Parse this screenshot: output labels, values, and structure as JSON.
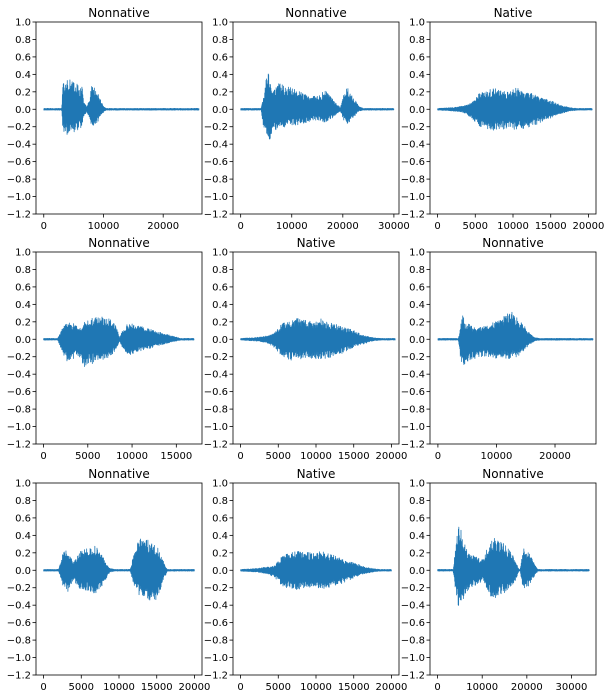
{
  "figure": {
    "waveform_color": "#1f77b4"
  },
  "chart_data": [
    {
      "type": "line",
      "title": "Nonnative",
      "xlim": [
        -1300,
        26500
      ],
      "xticks": [
        0,
        10000,
        20000
      ],
      "xtick_labels": [
        "0",
        "10000",
        "20000"
      ],
      "ylim": [
        -1.2,
        1.0
      ],
      "yticks": [
        -1.2,
        -1.0,
        -0.8,
        -0.6,
        -0.4,
        -0.2,
        0.0,
        0.2,
        0.4,
        0.6,
        0.8,
        1.0
      ],
      "ytick_labels": [
        "−1.2",
        "−1.0",
        "−0.8",
        "−0.6",
        "−0.4",
        "−0.2",
        "0.0",
        "0.2",
        "0.4",
        "0.6",
        "0.8",
        "1.0"
      ],
      "length": 26000,
      "envelope": {
        "x": [
          0,
          3000,
          3200,
          4000,
          5000,
          6000,
          6400,
          6700,
          7200,
          7700,
          8000,
          8400,
          9000,
          9700,
          10200,
          10500,
          26000
        ],
        "max": [
          0.01,
          0.01,
          0.3,
          0.37,
          0.35,
          0.25,
          0.3,
          0.08,
          0.03,
          0.12,
          0.28,
          0.26,
          0.2,
          0.08,
          0.02,
          0.01,
          0.01
        ],
        "min": [
          -0.01,
          -0.01,
          -0.25,
          -0.3,
          -0.28,
          -0.22,
          -0.24,
          -0.08,
          -0.03,
          -0.1,
          -0.2,
          -0.19,
          -0.15,
          -0.06,
          -0.02,
          -0.01,
          -0.01
        ]
      }
    },
    {
      "type": "line",
      "title": "Nonnative",
      "xlim": [
        -1500,
        31000
      ],
      "xticks": [
        0,
        10000,
        20000,
        30000
      ],
      "xtick_labels": [
        "0",
        "10000",
        "20000",
        "30000"
      ],
      "ylim": [
        -1.2,
        1.0
      ],
      "yticks": [
        -1.2,
        -1.0,
        -0.8,
        -0.6,
        -0.4,
        -0.2,
        0.0,
        0.2,
        0.4,
        0.6,
        0.8,
        1.0
      ],
      "ytick_labels": [
        "−1.2",
        "−1.0",
        "−0.8",
        "−0.6",
        "−0.4",
        "−0.2",
        "0.0",
        "0.2",
        "0.4",
        "0.6",
        "0.8",
        "1.0"
      ],
      "length": 30000,
      "envelope": {
        "x": [
          0,
          4000,
          4300,
          4900,
          5300,
          5800,
          6300,
          7500,
          9000,
          11000,
          13000,
          15000,
          16500,
          18000,
          19500,
          20000,
          20600,
          21200,
          22300,
          23200,
          24000,
          30000
        ],
        "max": [
          0.01,
          0.01,
          0.1,
          0.3,
          0.53,
          0.35,
          0.2,
          0.3,
          0.27,
          0.22,
          0.17,
          0.15,
          0.22,
          0.12,
          0.02,
          0.15,
          0.28,
          0.22,
          0.12,
          0.03,
          0.01,
          0.01
        ],
        "min": [
          -0.01,
          -0.01,
          -0.15,
          -0.3,
          -0.48,
          -0.35,
          -0.25,
          -0.22,
          -0.2,
          -0.18,
          -0.15,
          -0.12,
          -0.15,
          -0.1,
          -0.02,
          -0.1,
          -0.18,
          -0.15,
          -0.08,
          -0.02,
          -0.01,
          -0.01
        ]
      }
    },
    {
      "type": "line",
      "title": "Native",
      "xlim": [
        -1000,
        21000
      ],
      "xticks": [
        0,
        5000,
        10000,
        15000,
        20000
      ],
      "xtick_labels": [
        "0",
        "5000",
        "10000",
        "15000",
        "20000"
      ],
      "ylim": [
        -1.2,
        1.0
      ],
      "yticks": [
        -1.2,
        -1.0,
        -0.8,
        -0.6,
        -0.4,
        -0.2,
        0.0,
        0.2,
        0.4,
        0.6,
        0.8,
        1.0
      ],
      "ytick_labels": [
        "−1.2",
        "−1.0",
        "−0.8",
        "−0.6",
        "−0.4",
        "−0.2",
        "0.0",
        "0.2",
        "0.4",
        "0.6",
        "0.8",
        "1.0"
      ],
      "length": 20500,
      "envelope": {
        "x": [
          0,
          2000,
          3500,
          4500,
          5500,
          6500,
          7500,
          8500,
          9500,
          10500,
          11500,
          12500,
          13500,
          14500,
          15500,
          16500,
          17500,
          18500,
          20500
        ],
        "max": [
          0.01,
          0.02,
          0.04,
          0.07,
          0.18,
          0.22,
          0.24,
          0.22,
          0.2,
          0.25,
          0.2,
          0.18,
          0.14,
          0.12,
          0.08,
          0.04,
          0.02,
          0.01,
          0.01
        ],
        "min": [
          -0.01,
          -0.02,
          -0.04,
          -0.1,
          -0.2,
          -0.24,
          -0.24,
          -0.23,
          -0.22,
          -0.24,
          -0.22,
          -0.2,
          -0.16,
          -0.12,
          -0.08,
          -0.05,
          -0.02,
          -0.01,
          -0.01
        ]
      }
    },
    {
      "type": "line",
      "title": "Nonnative",
      "xlim": [
        -850,
        17900
      ],
      "xticks": [
        0,
        5000,
        10000,
        15000
      ],
      "xtick_labels": [
        "0",
        "5000",
        "10000",
        "15000"
      ],
      "ylim": [
        -1.2,
        1.0
      ],
      "yticks": [
        -1.2,
        -1.0,
        -0.8,
        -0.6,
        -0.4,
        -0.2,
        0.0,
        0.2,
        0.4,
        0.6,
        0.8,
        1.0
      ],
      "ytick_labels": [
        "−1.2",
        "−1.0",
        "−0.8",
        "−0.6",
        "−0.4",
        "−0.2",
        "0.0",
        "0.2",
        "0.4",
        "0.6",
        "0.8",
        "1.0"
      ],
      "length": 17000,
      "envelope": {
        "x": [
          0,
          1600,
          2000,
          2600,
          3500,
          4000,
          4600,
          5500,
          6500,
          7500,
          8200,
          8600,
          9000,
          9600,
          10500,
          11500,
          12500,
          13500,
          14500,
          15500,
          17000
        ],
        "max": [
          0.01,
          0.01,
          0.1,
          0.2,
          0.18,
          0.12,
          0.2,
          0.25,
          0.26,
          0.24,
          0.15,
          0.02,
          0.12,
          0.2,
          0.16,
          0.14,
          0.1,
          0.07,
          0.04,
          0.01,
          0.01
        ],
        "min": [
          -0.01,
          -0.01,
          -0.12,
          -0.25,
          -0.22,
          -0.2,
          -0.32,
          -0.28,
          -0.24,
          -0.2,
          -0.12,
          -0.02,
          -0.12,
          -0.2,
          -0.15,
          -0.12,
          -0.09,
          -0.06,
          -0.03,
          -0.01,
          -0.01
        ]
      }
    },
    {
      "type": "line",
      "title": "Native",
      "xlim": [
        -1000,
        21000
      ],
      "xticks": [
        0,
        5000,
        10000,
        15000,
        20000
      ],
      "xtick_labels": [
        "0",
        "5000",
        "10000",
        "15000",
        "20000"
      ],
      "ylim": [
        -1.2,
        1.0
      ],
      "yticks": [
        -1.2,
        -1.0,
        -0.8,
        -0.6,
        -0.4,
        -0.2,
        0.0,
        0.2,
        0.4,
        0.6,
        0.8,
        1.0
      ],
      "ytick_labels": [
        "−1.2",
        "−1.0",
        "−0.8",
        "−0.6",
        "−0.4",
        "−0.2",
        "0.0",
        "0.2",
        "0.4",
        "0.6",
        "0.8",
        "1.0"
      ],
      "length": 20500,
      "envelope": {
        "x": [
          0,
          2000,
          3500,
          4500,
          5500,
          6500,
          7500,
          8500,
          9500,
          10500,
          11500,
          12500,
          13500,
          14500,
          15500,
          16500,
          17500,
          18500,
          20500
        ],
        "max": [
          0.01,
          0.02,
          0.04,
          0.07,
          0.18,
          0.22,
          0.24,
          0.22,
          0.2,
          0.24,
          0.2,
          0.18,
          0.14,
          0.12,
          0.08,
          0.04,
          0.02,
          0.01,
          0.01
        ],
        "min": [
          -0.01,
          -0.02,
          -0.04,
          -0.1,
          -0.2,
          -0.24,
          -0.24,
          -0.23,
          -0.22,
          -0.24,
          -0.22,
          -0.2,
          -0.16,
          -0.12,
          -0.08,
          -0.05,
          -0.02,
          -0.01,
          -0.01
        ]
      }
    },
    {
      "type": "line",
      "title": "Nonnative",
      "xlim": [
        -1350,
        27000
      ],
      "xticks": [
        0,
        10000,
        20000
      ],
      "xtick_labels": [
        "0",
        "10000",
        "20000"
      ],
      "ylim": [
        -1.2,
        1.0
      ],
      "yticks": [
        -1.2,
        -1.0,
        -0.8,
        -0.6,
        -0.4,
        -0.2,
        0.0,
        0.2,
        0.4,
        0.6,
        0.8,
        1.0
      ],
      "ytick_labels": [
        "−1.2",
        "−1.0",
        "−0.8",
        "−0.6",
        "−0.4",
        "−0.2",
        "0.0",
        "0.2",
        "0.4",
        "0.6",
        "0.8",
        "1.0"
      ],
      "length": 26500,
      "envelope": {
        "x": [
          0,
          3500,
          3800,
          4200,
          4600,
          5200,
          6500,
          8000,
          9500,
          11000,
          12500,
          13500,
          14500,
          15500,
          16500,
          17500,
          26500
        ],
        "max": [
          0.01,
          0.01,
          0.12,
          0.3,
          0.2,
          0.18,
          0.12,
          0.16,
          0.2,
          0.25,
          0.32,
          0.25,
          0.18,
          0.08,
          0.02,
          0.01,
          0.01
        ],
        "min": [
          -0.01,
          -0.01,
          -0.2,
          -0.3,
          -0.3,
          -0.25,
          -0.22,
          -0.2,
          -0.22,
          -0.22,
          -0.22,
          -0.2,
          -0.15,
          -0.07,
          -0.02,
          -0.01,
          -0.01
        ]
      }
    },
    {
      "type": "line",
      "title": "Nonnative",
      "xlim": [
        -1000,
        21000
      ],
      "xticks": [
        0,
        5000,
        10000,
        15000,
        20000
      ],
      "xtick_labels": [
        "0",
        "5000",
        "10000",
        "15000",
        "20000"
      ],
      "ylim": [
        -1.2,
        1.0
      ],
      "yticks": [
        -1.2,
        -1.0,
        -0.8,
        -0.6,
        -0.4,
        -0.2,
        0.0,
        0.2,
        0.4,
        0.6,
        0.8,
        1.0
      ],
      "ytick_labels": [
        "−1.2",
        "−1.0",
        "−0.8",
        "−0.6",
        "−0.4",
        "−0.2",
        "0.0",
        "0.2",
        "0.4",
        "0.6",
        "0.8",
        "1.0"
      ],
      "length": 20000,
      "envelope": {
        "x": [
          0,
          2000,
          2300,
          2700,
          3200,
          4000,
          4600,
          5200,
          6000,
          6800,
          7500,
          8300,
          8800,
          9500,
          11500,
          12000,
          12600,
          13300,
          14200,
          15200,
          15900,
          16400,
          20000
        ],
        "max": [
          0.01,
          0.01,
          0.1,
          0.25,
          0.2,
          0.1,
          0.2,
          0.24,
          0.26,
          0.28,
          0.22,
          0.08,
          0.02,
          0.01,
          0.01,
          0.2,
          0.35,
          0.38,
          0.33,
          0.25,
          0.1,
          0.01,
          0.01
        ],
        "min": [
          -0.01,
          -0.01,
          -0.1,
          -0.22,
          -0.25,
          -0.12,
          -0.2,
          -0.22,
          -0.25,
          -0.27,
          -0.22,
          -0.1,
          -0.02,
          -0.01,
          -0.01,
          -0.2,
          -0.28,
          -0.3,
          -0.36,
          -0.33,
          -0.12,
          -0.01,
          -0.01
        ]
      }
    },
    {
      "type": "line",
      "title": "Native",
      "xlim": [
        -1000,
        21000
      ],
      "xticks": [
        0,
        5000,
        10000,
        15000,
        20000
      ],
      "xtick_labels": [
        "0",
        "5000",
        "10000",
        "15000",
        "20000"
      ],
      "ylim": [
        -1.2,
        1.0
      ],
      "yticks": [
        -1.2,
        -1.0,
        -0.8,
        -0.6,
        -0.4,
        -0.2,
        0.0,
        0.2,
        0.4,
        0.6,
        0.8,
        1.0
      ],
      "ytick_labels": [
        "−1.2",
        "−1.0",
        "−0.8",
        "−0.6",
        "−0.4",
        "−0.2",
        "0.0",
        "0.2",
        "0.4",
        "0.6",
        "0.8",
        "1.0"
      ],
      "length": 20000,
      "envelope": {
        "x": [
          0,
          2000,
          3500,
          4500,
          5500,
          6500,
          7500,
          8500,
          9500,
          10500,
          11500,
          12500,
          13500,
          14500,
          15500,
          16500,
          17500,
          18500,
          20000
        ],
        "max": [
          0.01,
          0.02,
          0.04,
          0.05,
          0.16,
          0.2,
          0.22,
          0.21,
          0.2,
          0.22,
          0.2,
          0.17,
          0.13,
          0.1,
          0.07,
          0.04,
          0.02,
          0.01,
          0.01
        ],
        "min": [
          -0.01,
          -0.02,
          -0.04,
          -0.08,
          -0.18,
          -0.22,
          -0.22,
          -0.21,
          -0.2,
          -0.22,
          -0.2,
          -0.18,
          -0.15,
          -0.11,
          -0.07,
          -0.04,
          -0.02,
          -0.01,
          -0.01
        ]
      }
    },
    {
      "type": "line",
      "title": "Nonnative",
      "xlim": [
        -1700,
        35500
      ],
      "xticks": [
        0,
        10000,
        20000,
        30000
      ],
      "xtick_labels": [
        "0",
        "10000",
        "20000",
        "30000"
      ],
      "ylim": [
        -1.2,
        1.0
      ],
      "yticks": [
        -1.2,
        -1.0,
        -0.8,
        -0.6,
        -0.4,
        -0.2,
        0.0,
        0.2,
        0.4,
        0.6,
        0.8,
        1.0
      ],
      "ytick_labels": [
        "−1.2",
        "−1.0",
        "−0.8",
        "−0.6",
        "−0.4",
        "−0.2",
        "0.0",
        "0.2",
        "0.4",
        "0.6",
        "0.8",
        "1.0"
      ],
      "length": 34000,
      "envelope": {
        "x": [
          0,
          3500,
          3900,
          4600,
          5000,
          5700,
          6500,
          7500,
          9000,
          10200,
          11000,
          11800,
          12500,
          13500,
          15000,
          16500,
          17700,
          18200,
          18500,
          19200,
          20500,
          21800,
          22500,
          34000
        ],
        "max": [
          0.01,
          0.01,
          0.2,
          0.5,
          0.57,
          0.4,
          0.25,
          0.2,
          0.15,
          0.12,
          0.25,
          0.3,
          0.38,
          0.36,
          0.3,
          0.2,
          0.1,
          0.01,
          0.01,
          0.25,
          0.2,
          0.08,
          0.01,
          0.01
        ],
        "min": [
          -0.01,
          -0.01,
          -0.2,
          -0.4,
          -0.43,
          -0.35,
          -0.25,
          -0.2,
          -0.16,
          -0.12,
          -0.22,
          -0.3,
          -0.33,
          -0.3,
          -0.26,
          -0.2,
          -0.1,
          -0.01,
          -0.01,
          -0.22,
          -0.18,
          -0.06,
          -0.01,
          -0.01
        ]
      }
    }
  ]
}
